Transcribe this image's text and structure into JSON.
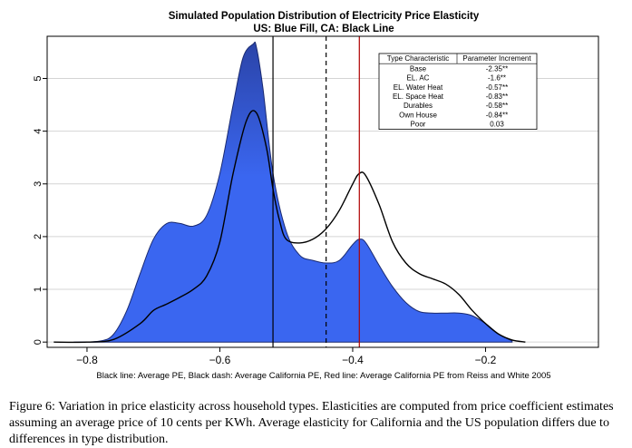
{
  "chart_data": {
    "type": "area",
    "title": "Simulated Population Distribution of Electricity Price Elasticity",
    "subtitle": "US: Blue Fill, CA: Black Line",
    "x_ticks": [
      -0.8,
      -0.6,
      -0.4,
      -0.2
    ],
    "x_tick_labels": [
      "−0.8",
      "−0.6",
      "−0.4",
      "−0.2"
    ],
    "y_ticks": [
      0,
      1,
      2,
      3,
      4,
      5
    ],
    "xlim": [
      -0.86,
      -0.03
    ],
    "ylim": [
      -0.1,
      5.8
    ],
    "grid": "horizontal",
    "series": [
      {
        "name": "US",
        "style": "fill",
        "color": "#3a66f0",
        "x": [
          -0.82,
          -0.78,
          -0.76,
          -0.74,
          -0.72,
          -0.7,
          -0.68,
          -0.66,
          -0.64,
          -0.62,
          -0.6,
          -0.58,
          -0.565,
          -0.55,
          -0.545,
          -0.535,
          -0.52,
          -0.5,
          -0.48,
          -0.46,
          -0.44,
          -0.42,
          -0.4,
          -0.39,
          -0.38,
          -0.36,
          -0.34,
          -0.32,
          -0.3,
          -0.28,
          -0.26,
          -0.24,
          -0.22,
          -0.2,
          -0.18,
          -0.16
        ],
        "y": [
          0.0,
          0.02,
          0.15,
          0.6,
          1.3,
          1.95,
          2.25,
          2.25,
          2.2,
          2.4,
          3.2,
          4.5,
          5.4,
          5.65,
          5.6,
          4.8,
          3.2,
          2.1,
          1.65,
          1.55,
          1.5,
          1.55,
          1.85,
          1.95,
          1.88,
          1.45,
          1.05,
          0.75,
          0.58,
          0.55,
          0.55,
          0.55,
          0.5,
          0.35,
          0.15,
          0.02
        ]
      },
      {
        "name": "CA",
        "style": "line",
        "color": "#000000",
        "x": [
          -0.85,
          -0.8,
          -0.76,
          -0.72,
          -0.7,
          -0.68,
          -0.66,
          -0.64,
          -0.62,
          -0.6,
          -0.58,
          -0.56,
          -0.545,
          -0.53,
          -0.52,
          -0.51,
          -0.5,
          -0.48,
          -0.46,
          -0.44,
          -0.42,
          -0.4,
          -0.39,
          -0.38,
          -0.36,
          -0.34,
          -0.32,
          -0.3,
          -0.28,
          -0.26,
          -0.24,
          -0.22,
          -0.2,
          -0.18,
          -0.16,
          -0.14
        ],
        "y": [
          0.0,
          0.0,
          0.05,
          0.35,
          0.6,
          0.72,
          0.85,
          1.0,
          1.25,
          1.9,
          3.2,
          4.2,
          4.35,
          3.7,
          2.9,
          2.3,
          1.95,
          1.88,
          1.95,
          2.15,
          2.5,
          3.0,
          3.2,
          3.15,
          2.6,
          1.9,
          1.5,
          1.3,
          1.2,
          1.1,
          0.9,
          0.6,
          0.35,
          0.15,
          0.04,
          0.0
        ]
      }
    ],
    "reference_lines": [
      {
        "name": "Average PE",
        "x": -0.52,
        "color": "#000000",
        "dash": false
      },
      {
        "name": "Average California PE",
        "x": -0.44,
        "color": "#000000",
        "dash": true
      },
      {
        "name": "Average California PE from Reiss and White 2005",
        "x": -0.39,
        "color": "#b00000",
        "dash": false
      }
    ],
    "footnote": "Black line: Average PE, Black dash: Average California PE, Red line: Average California PE from Reiss and White 2005",
    "inset_table": {
      "headers": [
        "Type Characteristic",
        "Parameter Increment"
      ],
      "rows": [
        [
          "Base",
          "-2.35**"
        ],
        [
          "EL. AC",
          "-1.6**"
        ],
        [
          "EL. Water Heat",
          "-0.57**"
        ],
        [
          "EL. Space Heat",
          "-0.83**"
        ],
        [
          "Durables",
          "-0.58**"
        ],
        [
          "Own House",
          "-0.84**"
        ],
        [
          "Poor",
          "0.03"
        ]
      ]
    }
  },
  "caption": "Figure 6: Variation in price elasticity across household types. Elasticities are computed from price coefficient estimates assuming an average price of 10 cents per KWh. Average elasticity for California and the US population differs due to differences in type distribution."
}
